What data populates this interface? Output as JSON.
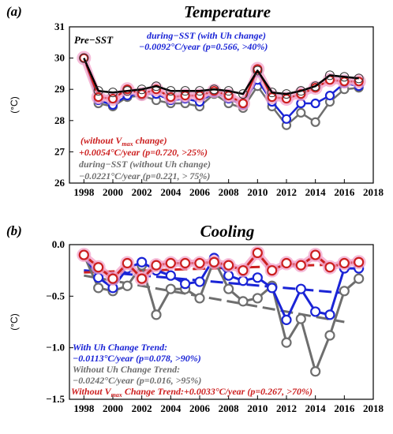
{
  "colors": {
    "black": "#000000",
    "red": "#cc1f1f",
    "blue": "#1a24d6",
    "gray": "#6e6e6e",
    "pink_highlight": "#f2a6cc",
    "open_circle": "#333333"
  },
  "chart_data": [
    {
      "type": "line",
      "panel_label": "(a)",
      "title": "Temperature",
      "xlabel": "",
      "ylabel": "(°C)",
      "xlim": [
        1997,
        2018
      ],
      "ylim": [
        26,
        31
      ],
      "x_ticks": [
        1998,
        2000,
        2002,
        2004,
        2006,
        2008,
        2010,
        2012,
        2014,
        2016,
        2018
      ],
      "y_ticks": [
        26,
        27,
        28,
        29,
        30,
        31
      ],
      "x": [
        1998,
        1999,
        2000,
        2001,
        2002,
        2003,
        2004,
        2005,
        2006,
        2007,
        2008,
        2009,
        2010,
        2011,
        2012,
        2013,
        2014,
        2015,
        2016,
        2017
      ],
      "series": [
        {
          "name": "Pre-SST",
          "color": "black",
          "marker": "open-circle",
          "values": [
            30.0,
            28.95,
            28.9,
            28.95,
            29.0,
            29.1,
            28.95,
            28.95,
            28.95,
            29.0,
            28.95,
            28.85,
            29.6,
            28.9,
            28.85,
            28.95,
            29.1,
            29.45,
            29.4,
            29.35
          ]
        },
        {
          "name": "without Vmax change",
          "color": "red",
          "marker": "circle-highlight",
          "values": [
            30.0,
            28.75,
            28.7,
            29.0,
            28.85,
            29.0,
            28.75,
            28.8,
            28.8,
            28.95,
            28.8,
            28.55,
            29.65,
            28.75,
            28.7,
            28.85,
            29.05,
            29.3,
            29.25,
            29.25
          ]
        },
        {
          "name": "during-SST (with Uh change)",
          "color": "blue",
          "marker": "circle",
          "values": [
            30.0,
            28.65,
            28.5,
            28.8,
            28.85,
            28.85,
            28.65,
            28.7,
            28.6,
            28.9,
            28.7,
            28.5,
            29.3,
            28.6,
            28.05,
            28.55,
            28.55,
            28.8,
            29.2,
            29.1
          ]
        },
        {
          "name": "during-SST (without Uh change)",
          "color": "gray",
          "marker": "circle",
          "values": [
            30.0,
            28.55,
            28.45,
            28.75,
            28.8,
            28.65,
            28.55,
            28.55,
            28.45,
            28.85,
            28.55,
            28.4,
            29.1,
            28.45,
            27.85,
            28.25,
            27.95,
            28.6,
            29.0,
            29.05
          ]
        }
      ],
      "annotations": [
        {
          "text": "Pre−SST",
          "color": "black"
        },
        {
          "text": "during−SST (with Uh change)",
          "color": "blue"
        },
        {
          "text": "−0.0092°C/year (p=0.566, >40%)",
          "color": "blue"
        },
        {
          "text": "(without V",
          "sub": "max",
          "tail": " change)",
          "color": "red"
        },
        {
          "text": "+0.0054°C/year (p=0.720, >25%)",
          "color": "red"
        },
        {
          "text": "during−SST (without Uh change)",
          "color": "gray"
        },
        {
          "text": "−0.0221°C/year (p=0.221, > 75%)",
          "color": "gray"
        }
      ]
    },
    {
      "type": "line",
      "panel_label": "(b)",
      "title": "Cooling",
      "xlabel": "",
      "ylabel": "(°C)",
      "xlim": [
        1997,
        2018
      ],
      "ylim": [
        -1.5,
        0.0
      ],
      "x_ticks": [
        1998,
        2000,
        2002,
        2004,
        2006,
        2008,
        2010,
        2012,
        2014,
        2016,
        2018
      ],
      "y_ticks": [
        -1.5,
        -1.0,
        -0.5,
        0.0
      ],
      "y_tick_labels": [
        "−1.5",
        "−1.0",
        "−0.5",
        "0.0"
      ],
      "x": [
        1998,
        1999,
        2000,
        2001,
        2002,
        2003,
        2004,
        2005,
        2006,
        2007,
        2008,
        2009,
        2010,
        2011,
        2012,
        2013,
        2014,
        2015,
        2016,
        2017
      ],
      "series": [
        {
          "name": "With Uh Change Trend",
          "color": "blue",
          "values": [
            -0.1,
            -0.32,
            -0.42,
            -0.23,
            -0.17,
            -0.25,
            -0.3,
            -0.38,
            -0.36,
            -0.13,
            -0.3,
            -0.35,
            -0.32,
            -0.42,
            -0.73,
            -0.43,
            -0.65,
            -0.68,
            -0.23,
            -0.23
          ]
        },
        {
          "name": "Without Uh Change Trend",
          "color": "gray",
          "values": [
            -0.1,
            -0.42,
            -0.45,
            -0.4,
            -0.2,
            -0.68,
            -0.43,
            -0.43,
            -0.52,
            -0.15,
            -0.43,
            -0.55,
            -0.52,
            -0.4,
            -0.95,
            -0.72,
            -1.23,
            -0.88,
            -0.45,
            -0.33
          ]
        },
        {
          "name": "Without Vmax Change Trend",
          "color": "red",
          "values": [
            -0.1,
            -0.22,
            -0.33,
            -0.18,
            -0.33,
            -0.2,
            -0.18,
            -0.18,
            -0.18,
            -0.17,
            -0.2,
            -0.25,
            -0.08,
            -0.25,
            -0.18,
            -0.2,
            -0.1,
            -0.22,
            -0.18,
            -0.17
          ]
        }
      ],
      "trend_lines": [
        {
          "series": "With Uh Change Trend",
          "color": "blue",
          "start": [
            1998,
            -0.25
          ],
          "end": [
            2016,
            -0.47
          ]
        },
        {
          "series": "Without Uh Change Trend",
          "color": "gray",
          "start": [
            1998,
            -0.3
          ],
          "end": [
            2016,
            -0.75
          ]
        },
        {
          "series": "Without Vmax Change Trend",
          "color": "red",
          "start": [
            1998,
            -0.27
          ],
          "end": [
            2016,
            -0.19
          ]
        }
      ],
      "annotations": [
        {
          "text": "With Uh Change Trend:",
          "color": "blue"
        },
        {
          "text": "−0.0113°C/year (p=0.078, >90%)",
          "color": "blue"
        },
        {
          "text": "Without Uh Change Trend:",
          "color": "gray"
        },
        {
          "text": "−0.0242°C/year (p=0.016, >95%)",
          "color": "gray"
        },
        {
          "text": "Without V",
          "sub": "max",
          "tail": " Change Trend:+0.0033°C/year (p=0.267, >70%)",
          "color": "red"
        }
      ]
    }
  ]
}
